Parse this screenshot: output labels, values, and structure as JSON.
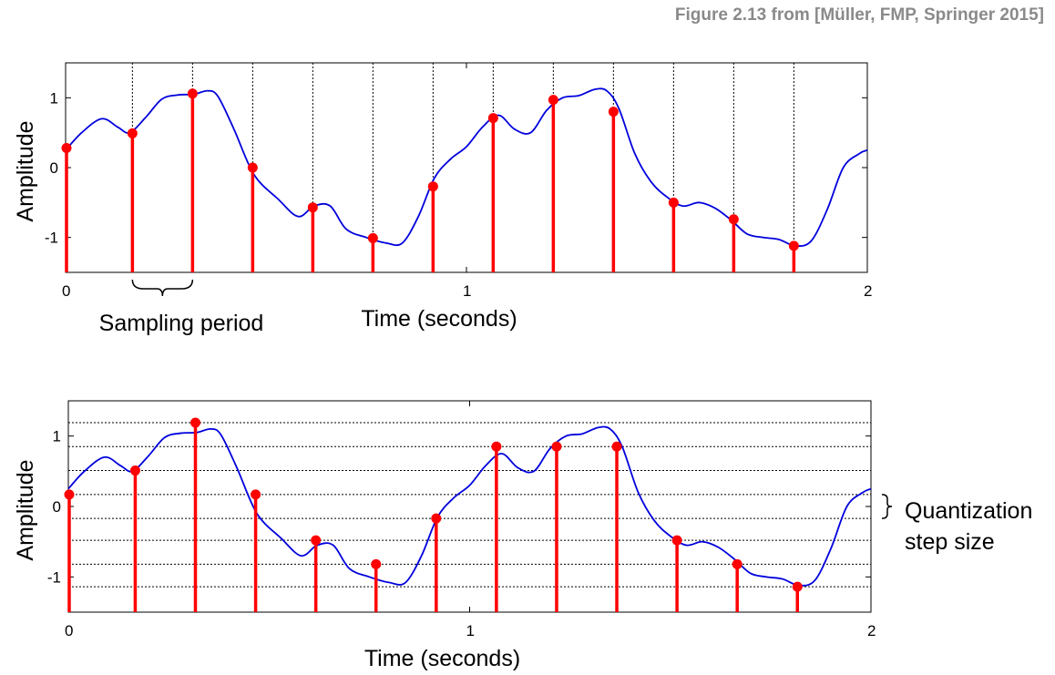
{
  "credit": "Figure 2.13 from [Müller, FMP, Springer 2015]",
  "colors": {
    "signal": "#0000dd",
    "stem": "#ff0000",
    "axis": "#000000",
    "credit": "#8a8a8a"
  },
  "chart_data": [
    {
      "type": "line",
      "title": "",
      "xlabel": "Time (seconds)",
      "ylabel": "Amplitude",
      "xlim": [
        0,
        2
      ],
      "ylim": [
        -1.5,
        1.5
      ],
      "xticks": [
        "0",
        "1",
        "2"
      ],
      "yticks": [
        "1",
        "0",
        "-1"
      ],
      "grid": "vertical dotted lines at sample times",
      "annotation": "Sampling period",
      "series": [
        {
          "x": [
            0,
            0.04,
            0.09,
            0.13,
            0.16,
            0.2,
            0.24,
            0.28,
            0.32,
            0.355,
            0.38,
            0.42,
            0.47,
            0.53,
            0.58,
            0.62,
            0.66,
            0.7,
            0.75,
            0.8,
            0.84,
            0.88,
            0.92,
            0.96,
            1.0,
            1.04,
            1.08,
            1.12,
            1.16,
            1.2,
            1.24,
            1.28,
            1.32,
            1.35,
            1.38,
            1.42,
            1.46,
            1.5,
            1.54,
            1.58,
            1.62,
            1.66,
            1.7,
            1.74,
            1.78,
            1.82,
            1.86,
            1.9,
            1.94,
            1.98,
            2.0
          ],
          "y": [
            0.25,
            0.5,
            0.7,
            0.58,
            0.5,
            0.72,
            0.98,
            1.04,
            1.05,
            1.1,
            1.02,
            0.55,
            -0.1,
            -0.45,
            -0.7,
            -0.55,
            -0.55,
            -0.88,
            -1.0,
            -1.08,
            -1.08,
            -0.7,
            -0.15,
            0.12,
            0.3,
            0.58,
            0.75,
            0.55,
            0.5,
            0.82,
            1.0,
            1.03,
            1.12,
            1.1,
            0.85,
            0.2,
            -0.2,
            -0.42,
            -0.55,
            -0.5,
            -0.58,
            -0.75,
            -0.95,
            -1.0,
            -1.03,
            -1.12,
            -1.05,
            -0.6,
            0.0,
            0.2,
            0.25
          ]
        },
        {
          "type": "stem",
          "x": [
            0.0,
            0.1667,
            0.3167,
            0.4667,
            0.6167,
            0.7667,
            0.9167,
            1.0667,
            1.2167,
            1.3667,
            1.5167,
            1.6667,
            1.8167
          ],
          "y": [
            0.28,
            0.49,
            1.06,
            0.0,
            -0.57,
            -1.01,
            -0.27,
            0.71,
            0.97,
            0.8,
            -0.5,
            -0.74,
            -1.12
          ]
        }
      ]
    },
    {
      "type": "line",
      "title": "",
      "xlabel": "Time (seconds)",
      "ylabel": "Amplitude",
      "xlim": [
        0,
        2
      ],
      "ylim": [
        -1.5,
        1.5
      ],
      "xticks": [
        "0",
        "1",
        "2"
      ],
      "yticks": [
        "1",
        "0",
        "-1"
      ],
      "grid": "horizontal dotted lines at quantization levels",
      "quantization_levels": [
        1.19,
        0.85,
        0.51,
        0.17,
        -0.17,
        -0.48,
        -0.82,
        -1.14
      ],
      "annotation": [
        "Quantization",
        "step size"
      ],
      "series": [
        {
          "x": [
            0,
            0.04,
            0.09,
            0.13,
            0.16,
            0.2,
            0.24,
            0.28,
            0.32,
            0.355,
            0.38,
            0.42,
            0.47,
            0.53,
            0.58,
            0.62,
            0.66,
            0.7,
            0.75,
            0.8,
            0.84,
            0.88,
            0.92,
            0.96,
            1.0,
            1.04,
            1.08,
            1.12,
            1.16,
            1.2,
            1.24,
            1.28,
            1.32,
            1.35,
            1.38,
            1.42,
            1.46,
            1.5,
            1.54,
            1.58,
            1.62,
            1.66,
            1.7,
            1.74,
            1.78,
            1.82,
            1.86,
            1.9,
            1.94,
            1.98,
            2.0
          ],
          "y": [
            0.25,
            0.5,
            0.7,
            0.58,
            0.5,
            0.72,
            0.98,
            1.04,
            1.05,
            1.1,
            1.02,
            0.55,
            -0.1,
            -0.45,
            -0.7,
            -0.55,
            -0.55,
            -0.88,
            -1.0,
            -1.08,
            -1.08,
            -0.7,
            -0.15,
            0.12,
            0.3,
            0.58,
            0.75,
            0.55,
            0.5,
            0.82,
            1.0,
            1.03,
            1.12,
            1.1,
            0.85,
            0.2,
            -0.2,
            -0.42,
            -0.55,
            -0.5,
            -0.58,
            -0.75,
            -0.95,
            -1.0,
            -1.03,
            -1.12,
            -1.05,
            -0.6,
            0.0,
            0.2,
            0.25
          ]
        },
        {
          "type": "stem",
          "x": [
            0.0,
            0.1667,
            0.3167,
            0.4667,
            0.6167,
            0.7667,
            0.9167,
            1.0667,
            1.2167,
            1.3667,
            1.5167,
            1.6667,
            1.8167
          ],
          "y": [
            0.17,
            0.51,
            1.19,
            0.17,
            -0.48,
            -0.82,
            -0.17,
            0.85,
            0.85,
            0.85,
            -0.48,
            -0.82,
            -1.14
          ]
        }
      ]
    }
  ]
}
